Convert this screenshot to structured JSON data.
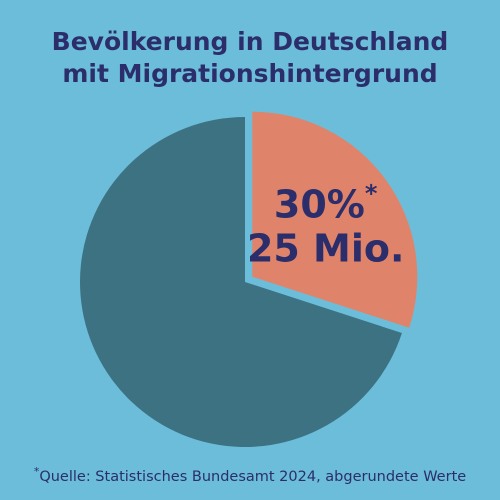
{
  "chart_data": {
    "type": "pie",
    "title": [
      "Bevölkerung in Deutschland",
      "mit Migrationshintergrund"
    ],
    "values": [
      30,
      70
    ],
    "value_labels": [
      "30%",
      null
    ],
    "count_labels": [
      "25 Mio.",
      null
    ],
    "colors": [
      "#df846b",
      "#3d7283"
    ],
    "note_marker": "*",
    "source": "Quelle: Statistisches Bundesamt 2024, abgerundete Werte"
  }
}
